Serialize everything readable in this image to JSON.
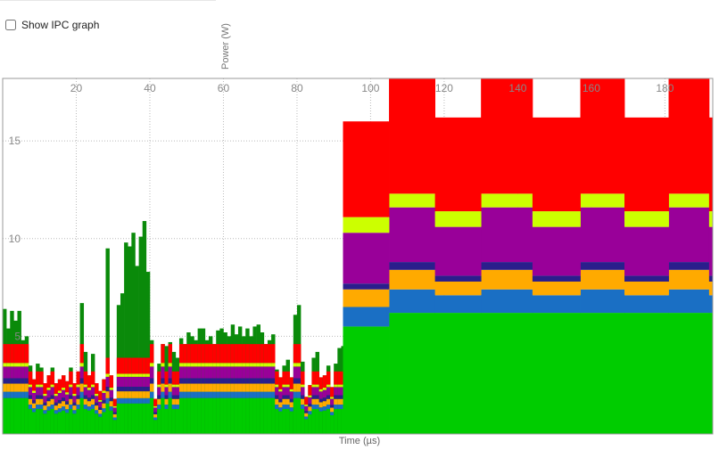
{
  "controls": {
    "ipc_label": "Show IPC graph",
    "ipc_checked": false
  },
  "chart_data": {
    "type": "area",
    "stacked": true,
    "step": true,
    "title": "",
    "xlabel": "Time (µs)",
    "ylabel": "Power (W)",
    "xlim": [
      0,
      193
    ],
    "ylim": [
      0,
      18.2
    ],
    "x_ticks": [
      20,
      40,
      60,
      80,
      100,
      120,
      140,
      160,
      180
    ],
    "y_ticks": [
      5,
      10,
      15
    ],
    "grid": true,
    "legend": "none",
    "region_1": {
      "x_range": [
        0,
        92.5
      ],
      "x": [
        0,
        1,
        2,
        3,
        4,
        5,
        6,
        7,
        8,
        9,
        10,
        11,
        12,
        13,
        14,
        15,
        16,
        17,
        18,
        19,
        20,
        21,
        22,
        23,
        24,
        25,
        26,
        27,
        28,
        29,
        30,
        31,
        32,
        33,
        34,
        35,
        36,
        37,
        38,
        39,
        40,
        41,
        42,
        43,
        44,
        45,
        46,
        47,
        48,
        49,
        50,
        51,
        52,
        53,
        54,
        55,
        56,
        57,
        58,
        59,
        60,
        61,
        62,
        63,
        64,
        65,
        66,
        67,
        68,
        69,
        70,
        71,
        72,
        73,
        74,
        75,
        76,
        77,
        78,
        79,
        80,
        81,
        82,
        83,
        84,
        85,
        86,
        87,
        88,
        89,
        90,
        91,
        92
      ],
      "top_total": [
        6.4,
        5.4,
        6.3,
        5.8,
        6.3,
        4.8,
        5.0,
        3.5,
        2.8,
        3.6,
        3.4,
        2.6,
        3.0,
        3.4,
        2.6,
        2.8,
        3.0,
        2.7,
        3.4,
        2.6,
        3.2,
        6.7,
        4.2,
        3.0,
        4.1,
        2.6,
        2.2,
        2.8,
        9.5,
        3.0,
        1.8,
        6.6,
        7.2,
        9.8,
        9.6,
        10.3,
        8.6,
        10.1,
        10.9,
        8.3,
        4.8,
        1.8,
        3.6,
        4.6,
        4.5,
        4.7,
        4.2,
        3.9,
        4.9,
        4.6,
        5.2,
        5.0,
        4.8,
        5.4,
        5.4,
        4.8,
        5.0,
        4.6,
        5.3,
        5.4,
        5.2,
        5.0,
        5.6,
        5.1,
        5.5,
        5.0,
        5.4,
        5.0,
        5.5,
        5.6,
        5.2,
        4.6,
        4.8,
        5.1,
        3.3,
        2.9,
        3.5,
        3.8,
        2.9,
        6.1,
        6.6,
        3.7,
        1.9,
        2.5,
        3.9,
        4.2,
        2.9,
        3.0,
        3.5,
        2.4,
        3.6,
        4.4,
        4.5
      ],
      "layer_fractions": {
        "green": 0.4,
        "blue": 0.07,
        "orange": 0.09,
        "indigo": 0.06,
        "purple": 0.13,
        "yellow": 0.04,
        "red": 0.21
      }
    },
    "region_2": {
      "x": [
        92.5,
        104.5,
        105,
        117.5,
        130,
        144,
        157,
        169,
        181,
        192,
        193
      ],
      "series": [
        {
          "color": "#00cc00",
          "values": [
            5.5,
            5.5,
            6.2,
            6.2,
            6.2,
            6.2,
            6.2,
            6.2,
            6.2,
            6.2,
            0.9
          ]
        },
        {
          "color": "#1a6fc4",
          "values": [
            1.0,
            1.0,
            1.2,
            0.9,
            1.2,
            0.9,
            1.2,
            0.9,
            1.2,
            0.9,
            0.2
          ]
        },
        {
          "color": "#ffaa00",
          "values": [
            0.9,
            0.9,
            1.0,
            0.7,
            1.0,
            0.7,
            1.0,
            0.7,
            1.0,
            0.7,
            0.2
          ]
        },
        {
          "color": "#2a1e8c",
          "values": [
            0.3,
            0.3,
            0.4,
            0.3,
            0.4,
            0.3,
            0.4,
            0.3,
            0.4,
            0.3,
            0.1
          ]
        },
        {
          "color": "#990099",
          "values": [
            2.6,
            2.6,
            2.8,
            2.5,
            2.8,
            2.5,
            2.8,
            2.5,
            2.8,
            2.5,
            0.3
          ]
        },
        {
          "color": "#ccff00",
          "values": [
            0.8,
            0.8,
            0.7,
            0.8,
            0.7,
            0.8,
            0.7,
            0.8,
            0.7,
            0.8,
            0.1
          ]
        },
        {
          "color": "#ff0000",
          "values": [
            4.9,
            4.9,
            5.9,
            4.8,
            5.9,
            4.8,
            5.9,
            4.8,
            5.9,
            4.8,
            0.7
          ]
        }
      ]
    },
    "layer_colors": {
      "green": "#00cc00",
      "blue": "#1a6fc4",
      "orange": "#ffaa00",
      "indigo": "#2a1e8c",
      "purple": "#990099",
      "yellow": "#ccff00",
      "red": "#ff0000",
      "dark_green": "#0a8a0a"
    }
  }
}
